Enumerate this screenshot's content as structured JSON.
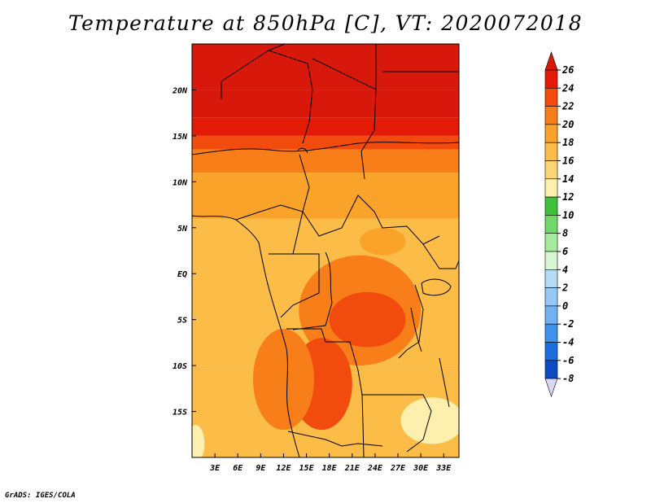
{
  "title": "Temperature at 850hPa [C], VT: 2020072018",
  "credit": "GrADS: IGES/COLA",
  "colors": {
    "land_boundary": "#000000",
    "frame": "#000000"
  },
  "chart_data": {
    "type": "heatmap",
    "title": "Temperature at 850hPa [C], VT: 2020072018",
    "units": "C",
    "valid_time": "2020072018",
    "lon_range": [
      0,
      35
    ],
    "lat_range": [
      -20,
      25
    ],
    "x_ticks": [
      3,
      6,
      9,
      12,
      15,
      18,
      21,
      24,
      27,
      30,
      33
    ],
    "x_tick_labels": [
      "3E",
      "6E",
      "9E",
      "12E",
      "15E",
      "18E",
      "21E",
      "24E",
      "27E",
      "30E",
      "33E"
    ],
    "y_ticks": [
      20,
      15,
      10,
      5,
      0,
      -5,
      -10,
      -15
    ],
    "y_tick_labels": [
      "20N",
      "15N",
      "10N",
      "5N",
      "EQ",
      "5S",
      "10S",
      "15S"
    ],
    "colorbar": {
      "labels": [
        "26",
        "24",
        "22",
        "20",
        "18",
        "16",
        "14",
        "12",
        "10",
        "8",
        "6",
        "4",
        "2",
        "0",
        "-2",
        "-4",
        "-6",
        "-8"
      ],
      "levels": [
        26,
        24,
        22,
        20,
        18,
        16,
        14,
        12,
        10,
        8,
        6,
        4,
        2,
        0,
        -2,
        -4,
        -6,
        -8
      ],
      "colors": [
        "#e31a05",
        "#f24b0e",
        "#f77e18",
        "#f9a32b",
        "#fbbd48",
        "#fcd678",
        "#fdf0ae",
        "#41c03e",
        "#72d86c",
        "#a6eb9d",
        "#d8f6d2",
        "#b4dcf6",
        "#96c8f5",
        "#73b2f2",
        "#3e92ec",
        "#1c6de0",
        "#0b4ac2",
        "#001084",
        "#d8d8f2"
      ],
      "top_arrow_color": "#d8180a",
      "bottom_arrow_color": "#d8d8f2"
    },
    "field_levels": [
      {
        "lat_min": 20,
        "lat_max": 25,
        "value": 27
      },
      {
        "lat_min": 17,
        "lat_max": 20,
        "value": 26
      },
      {
        "lat_min": 15,
        "lat_max": 17,
        "value": 25
      },
      {
        "lat_min": 13.5,
        "lat_max": 15,
        "value": 23
      },
      {
        "lat_min": 11,
        "lat_max": 13.5,
        "value": 21
      },
      {
        "lat_min": 6,
        "lat_max": 11,
        "value": 19
      },
      {
        "lat_min": -10,
        "lat_max": 6,
        "value": 17
      },
      {
        "lat_min": -20,
        "lat_max": -10,
        "value": 16
      }
    ],
    "warm_regions": [
      {
        "lon": [
          14,
          30
        ],
        "lat": [
          -10,
          2
        ],
        "value": 21
      },
      {
        "lon": [
          18,
          28
        ],
        "lat": [
          -8,
          -2
        ],
        "value": 23
      },
      {
        "lon": [
          13,
          21
        ],
        "lat": [
          -17,
          -7
        ],
        "value": 22
      },
      {
        "lon": [
          22,
          28
        ],
        "lat": [
          2,
          5
        ],
        "value": 19
      },
      {
        "lon": [
          8,
          16
        ],
        "lat": [
          -17,
          -6
        ],
        "value": 20
      }
    ],
    "cool_regions": [
      {
        "lon": [
          0,
          1
        ],
        "lat": [
          -20,
          -17
        ],
        "value": 13
      },
      {
        "lon": [
          28,
          35
        ],
        "lat": [
          -18,
          -14
        ],
        "value": 13
      }
    ]
  }
}
